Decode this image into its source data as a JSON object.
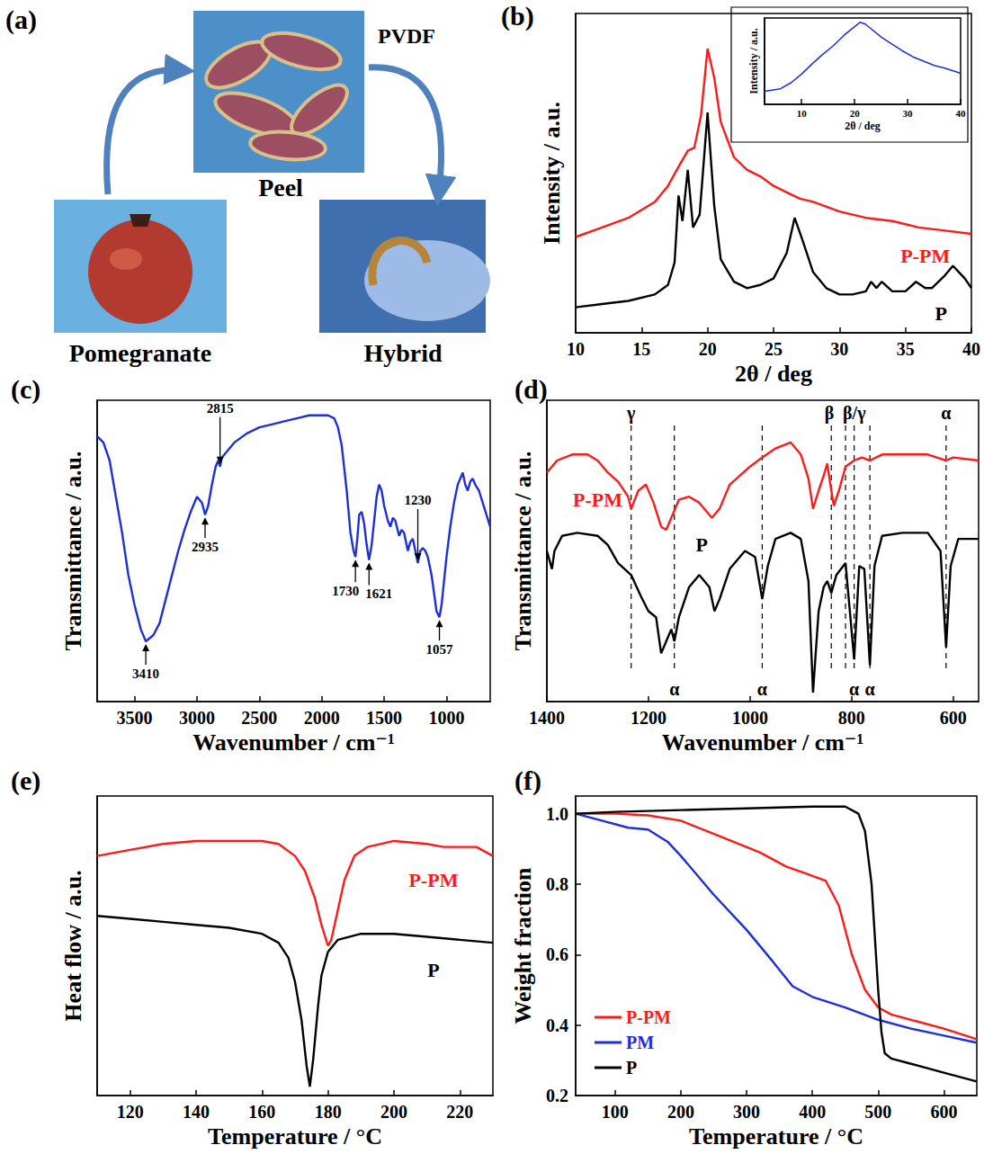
{
  "diagram": {
    "label": "(a)",
    "nodes": [
      {
        "label": "Pomegranate"
      },
      {
        "label": "Peel"
      },
      {
        "label": "Hybrid"
      }
    ],
    "edges": [
      {
        "from": "Pomegranate",
        "to": "Peel"
      },
      {
        "from": "Peel",
        "to": "Hybrid",
        "label": "PVDF"
      }
    ]
  },
  "chart_data": [
    {
      "label": "(b)",
      "type": "line",
      "xlabel": "2θ / deg",
      "ylabel": "Intensity / a.u.",
      "xlim": [
        10,
        40
      ],
      "xticks": [
        10,
        15,
        20,
        25,
        30,
        35,
        40
      ],
      "ylim": [
        0,
        100
      ],
      "tick_labels": "x",
      "grid": false,
      "series": [
        {
          "name": "P-PM",
          "color": "#ff1a1a",
          "label_x": 36.5,
          "label_y": 24,
          "x": [
            10,
            12,
            14,
            16,
            17,
            17.8,
            18.5,
            19,
            19.5,
            20,
            20.5,
            21,
            22,
            23,
            24,
            25,
            26,
            27,
            28,
            30,
            32,
            34,
            36,
            38,
            40
          ],
          "values": [
            30,
            33,
            36,
            41,
            46,
            52,
            57,
            58,
            68,
            89,
            80,
            66,
            55,
            51,
            49,
            46,
            44,
            42,
            41,
            38,
            36,
            35,
            33,
            32,
            31
          ]
        },
        {
          "name": "P",
          "color": "#000000",
          "label_x": 37.7,
          "label_y": 6,
          "x": [
            10,
            12,
            14,
            16,
            17,
            17.5,
            17.8,
            18.1,
            18.5,
            18.9,
            19.4,
            20,
            20.5,
            21,
            22,
            23,
            24,
            25,
            26,
            26.6,
            27.2,
            28,
            29,
            30,
            31,
            32,
            32.4,
            32.8,
            33.2,
            34,
            35,
            35.8,
            36.5,
            37,
            38,
            38.6,
            39.5,
            40
          ],
          "values": [
            8,
            9,
            10,
            12,
            15,
            22,
            43,
            35,
            51,
            33,
            37,
            69,
            40,
            23,
            16,
            14,
            15,
            17,
            25,
            36,
            29,
            19,
            14,
            12,
            12,
            13,
            16,
            14,
            16,
            13,
            13,
            16,
            14,
            14,
            18,
            21,
            17,
            14
          ]
        }
      ]
    },
    {
      "type": "line",
      "xlabel": "2θ / deg",
      "ylabel": "Intensity / a.u.",
      "xlim": [
        3,
        40
      ],
      "xticks": [
        10,
        20,
        30,
        40
      ],
      "ylim": [
        0,
        100
      ],
      "tick_labels": "x",
      "grid": false,
      "series": [
        {
          "color": "#1c2fd9",
          "x": [
            3,
            6,
            8,
            10,
            12,
            14,
            16,
            18,
            20,
            21,
            22,
            23,
            25,
            27,
            29,
            31,
            33,
            35,
            37,
            39,
            40
          ],
          "values": [
            15,
            18,
            25,
            35,
            47,
            58,
            68,
            80,
            90,
            95,
            93,
            88,
            78,
            70,
            62,
            55,
            50,
            45,
            42,
            38,
            36
          ]
        }
      ]
    },
    {
      "label": "(c)",
      "type": "line",
      "xlabel": "Wavenumber / cm⁻¹",
      "ylabel": "Transmittance / a.u.",
      "xlim": [
        3800,
        650
      ],
      "xticks": [
        3500,
        3000,
        2500,
        2000,
        1500,
        1000
      ],
      "ylim": [
        0,
        100
      ],
      "tick_labels": "x",
      "grid": false,
      "series": [
        {
          "color": "#1c2fd9",
          "x": [
            3800,
            3750,
            3700,
            3650,
            3600,
            3550,
            3500,
            3450,
            3410,
            3350,
            3300,
            3250,
            3200,
            3150,
            3100,
            3050,
            3000,
            2960,
            2935,
            2910,
            2880,
            2850,
            2830,
            2815,
            2800,
            2700,
            2600,
            2500,
            2400,
            2300,
            2200,
            2100,
            2000,
            1950,
            1900,
            1870,
            1840,
            1800,
            1770,
            1745,
            1730,
            1715,
            1700,
            1680,
            1660,
            1640,
            1621,
            1600,
            1580,
            1560,
            1540,
            1520,
            1500,
            1470,
            1450,
            1430,
            1410,
            1380,
            1360,
            1340,
            1310,
            1290,
            1270,
            1250,
            1230,
            1210,
            1190,
            1170,
            1150,
            1120,
            1100,
            1080,
            1057,
            1040,
            1020,
            1000,
            970,
            940,
            910,
            880,
            870,
            850,
            830,
            810,
            790,
            770,
            740,
            710,
            680,
            650
          ],
          "values": [
            88,
            86,
            80,
            68,
            56,
            42,
            32,
            24,
            20,
            22,
            26,
            34,
            42,
            50,
            57,
            63,
            68,
            66,
            62,
            65,
            72,
            78,
            80,
            78,
            81,
            86,
            89,
            91,
            92,
            93,
            94,
            95,
            95,
            95,
            94,
            91,
            85,
            70,
            56,
            50,
            48,
            54,
            62,
            63,
            59,
            52,
            47,
            52,
            60,
            68,
            72,
            70,
            65,
            60,
            58,
            61,
            60,
            55,
            57,
            56,
            50,
            53,
            54,
            50,
            46,
            50,
            51,
            50,
            48,
            42,
            36,
            30,
            28,
            32,
            40,
            48,
            58,
            66,
            72,
            75,
            76,
            72,
            70,
            73,
            74,
            72,
            70,
            66,
            62,
            58
          ]
        }
      ],
      "annotations": [
        {
          "text": "3410",
          "x": 3410,
          "y": 20
        },
        {
          "text": "2935",
          "x": 2935,
          "y": 62
        },
        {
          "text": "2815",
          "x": 2815,
          "y": 78
        },
        {
          "text": "1730",
          "x": 1730,
          "y": 48
        },
        {
          "text": "1621",
          "x": 1621,
          "y": 47
        },
        {
          "text": "1230",
          "x": 1230,
          "y": 46
        },
        {
          "text": "1057",
          "x": 1057,
          "y": 28
        }
      ]
    },
    {
      "label": "(d)",
      "type": "line",
      "xlabel": "Wavenumber / cm⁻¹",
      "ylabel": "Transmittance / a.u.",
      "xlim": [
        1400,
        550
      ],
      "xticks": [
        1400,
        1200,
        1000,
        800,
        600
      ],
      "ylim": [
        0,
        100
      ],
      "tick_labels": "x",
      "grid": false,
      "series": [
        {
          "name": "P-PM",
          "color": "#ff1a1a",
          "label_x": 1300,
          "label_y": 67,
          "x": [
            1400,
            1380,
            1350,
            1320,
            1300,
            1280,
            1260,
            1240,
            1234,
            1220,
            1205,
            1190,
            1175,
            1165,
            1150,
            1140,
            1120,
            1100,
            1075,
            1060,
            1040,
            1000,
            976,
            950,
            920,
            900,
            885,
            876,
            865,
            855,
            848,
            840,
            835,
            825,
            812,
            795,
            780,
            764,
            740,
            700,
            650,
            614,
            600,
            550
          ],
          "values": [
            76,
            80,
            82,
            82,
            80,
            76,
            73,
            68,
            64,
            70,
            72,
            66,
            58,
            57,
            63,
            67,
            68,
            66,
            61,
            64,
            72,
            78,
            81,
            84,
            86,
            82,
            74,
            64,
            70,
            75,
            79,
            70,
            65,
            70,
            78,
            80,
            81,
            80,
            82,
            82,
            82,
            80,
            81,
            80
          ]
        },
        {
          "name": "P",
          "color": "#000000",
          "label_x": 1095,
          "label_y": 52,
          "x": [
            1400,
            1390,
            1385,
            1370,
            1340,
            1300,
            1280,
            1260,
            1234,
            1215,
            1200,
            1185,
            1175,
            1165,
            1155,
            1149,
            1140,
            1120,
            1100,
            1080,
            1070,
            1060,
            1040,
            1010,
            990,
            976,
            965,
            950,
            920,
            900,
            885,
            876,
            865,
            855,
            848,
            840,
            830,
            812,
            795,
            785,
            775,
            764,
            755,
            740,
            700,
            650,
            625,
            614,
            605,
            590,
            550
          ],
          "values": [
            50,
            44,
            50,
            55,
            56,
            55,
            52,
            46,
            42,
            35,
            30,
            28,
            16,
            20,
            24,
            20,
            28,
            38,
            42,
            38,
            30,
            34,
            44,
            50,
            48,
            34,
            45,
            54,
            56,
            54,
            40,
            3,
            30,
            38,
            40,
            36,
            42,
            46,
            14,
            45,
            44,
            12,
            45,
            55,
            56,
            56,
            50,
            18,
            45,
            54,
            54
          ]
        }
      ],
      "annotations": [
        {
          "text": "γ",
          "x": 1234
        },
        {
          "text": "α",
          "x": 1149
        },
        {
          "text": "α",
          "x": 976
        },
        {
          "text": "β",
          "x": 840
        },
        {
          "text": "β/γ",
          "x": 812
        },
        {
          "text": "α",
          "x": 795
        },
        {
          "text": "α",
          "x": 764
        },
        {
          "text": "α",
          "x": 614
        }
      ]
    },
    {
      "label": "(e)",
      "type": "line",
      "xlabel": "Temperature / °C",
      "ylabel": "Heat flow / a.u.",
      "xlim": [
        110,
        230
      ],
      "xticks": [
        120,
        140,
        160,
        180,
        200,
        220
      ],
      "ylim": [
        0,
        100
      ],
      "tick_labels": "x",
      "grid": false,
      "series": [
        {
          "name": "P-PM",
          "color": "#ff1a1a",
          "label_x": 212,
          "label_y": 72,
          "x": [
            110,
            120,
            130,
            140,
            150,
            160,
            165,
            170,
            173,
            176,
            178,
            180,
            181,
            183,
            185,
            188,
            192,
            200,
            210,
            215,
            220,
            225,
            230
          ],
          "values": [
            80,
            82,
            84,
            85,
            85,
            85,
            84,
            80,
            75,
            66,
            57,
            50,
            52,
            62,
            72,
            80,
            83,
            85,
            84,
            83,
            83,
            83,
            80
          ]
        },
        {
          "name": "P",
          "color": "#000000",
          "label_x": 212,
          "label_y": 42,
          "x": [
            110,
            120,
            130,
            140,
            150,
            160,
            165,
            168,
            170,
            172,
            173.5,
            174.5,
            175.5,
            177,
            178,
            180,
            183,
            190,
            200,
            210,
            220,
            230
          ],
          "values": [
            60,
            59,
            58,
            57,
            56,
            54,
            51,
            46,
            38,
            25,
            10,
            3,
            12,
            30,
            40,
            48,
            52,
            54,
            54,
            53,
            52,
            51
          ]
        }
      ]
    },
    {
      "label": "(f)",
      "type": "line",
      "xlabel": "Temperature / °C",
      "ylabel": "Weight fraction",
      "xlim": [
        40,
        650
      ],
      "xticks": [
        100,
        200,
        300,
        400,
        500,
        600
      ],
      "ylim": [
        0.2,
        1.05
      ],
      "yticks": [
        0.2,
        0.4,
        0.6,
        0.8,
        {
          "value": 1,
          "label": "1.0"
        }
      ],
      "grid": false,
      "legend": "lower left",
      "series": [
        {
          "name": "P-PM",
          "color": "#ff1a1a",
          "x": [
            40,
            100,
            150,
            200,
            240,
            280,
            320,
            360,
            390,
            420,
            440,
            460,
            480,
            500,
            520,
            560,
            600,
            650
          ],
          "values": [
            1.0,
            1.0,
            0.995,
            0.98,
            0.95,
            0.92,
            0.89,
            0.85,
            0.83,
            0.81,
            0.74,
            0.6,
            0.5,
            0.45,
            0.43,
            0.41,
            0.39,
            0.36
          ]
        },
        {
          "name": "PM",
          "color": "#1c2fd9",
          "x": [
            40,
            80,
            120,
            150,
            180,
            200,
            250,
            300,
            340,
            370,
            400,
            450,
            500,
            550,
            600,
            650
          ],
          "values": [
            1.0,
            0.98,
            0.96,
            0.955,
            0.92,
            0.88,
            0.77,
            0.67,
            0.58,
            0.51,
            0.48,
            0.45,
            0.415,
            0.39,
            0.37,
            0.35
          ]
        },
        {
          "name": "P",
          "color": "#000000",
          "x": [
            40,
            100,
            200,
            300,
            400,
            450,
            470,
            480,
            490,
            495,
            500,
            505,
            510,
            520,
            550,
            600,
            650
          ],
          "values": [
            1.0,
            1.005,
            1.01,
            1.015,
            1.02,
            1.02,
            1.0,
            0.95,
            0.8,
            0.65,
            0.5,
            0.38,
            0.32,
            0.305,
            0.29,
            0.265,
            0.24
          ]
        }
      ]
    }
  ]
}
